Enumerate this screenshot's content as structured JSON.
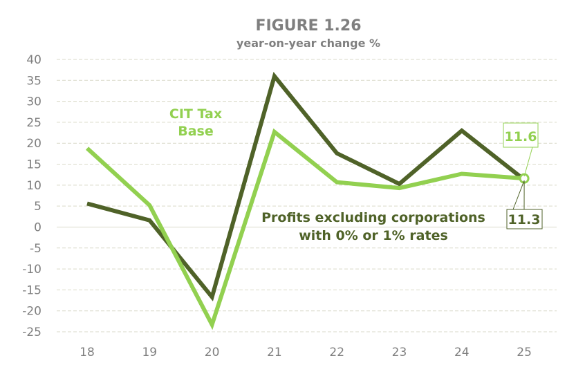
{
  "chart_data": {
    "type": "line",
    "title": "FIGURE 1.26",
    "subtitle": "year-on-year change %",
    "categories": [
      "18",
      "19",
      "20",
      "21",
      "22",
      "23",
      "24",
      "25"
    ],
    "ylim": [
      -25,
      40
    ],
    "yticks": [
      "40",
      "35",
      "30",
      "25",
      "20",
      "15",
      "10",
      "5",
      "0",
      "-5",
      "-10",
      "-15",
      "-20",
      "-25"
    ],
    "grid": true,
    "series": [
      {
        "name": "Profits excluding corporations with 0% or 1% rates",
        "name_lines": [
          "Profits excluding corporations",
          "with 0% or 1% rates"
        ],
        "color": "#4f6228",
        "values": [
          5.6,
          1.6,
          -16.7,
          36.0,
          17.6,
          10.3,
          23.0,
          11.3
        ],
        "end_label": "11.3"
      },
      {
        "name": "CIT Tax Base",
        "name_lines": [
          "CIT Tax",
          "Base"
        ],
        "color": "#92d050",
        "values": [
          18.8,
          5.2,
          -23.3,
          22.7,
          10.7,
          9.3,
          12.7,
          11.6
        ],
        "end_label": "11.6"
      }
    ]
  }
}
